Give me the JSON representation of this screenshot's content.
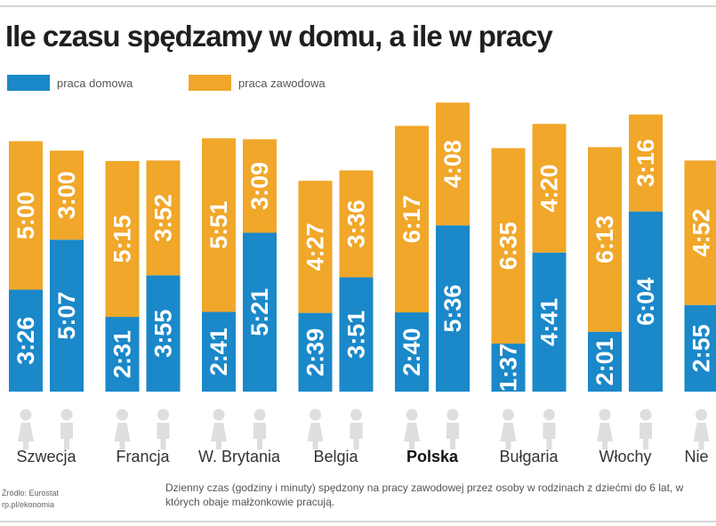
{
  "colors": {
    "home": "#1a88c9",
    "work": "#f0a72a",
    "person": "#dedede"
  },
  "chart_data": {
    "type": "bar",
    "stacked": true,
    "title": "Ile czasu spędzamy w domu, a ile w pracy",
    "legend": [
      "praca domowa",
      "praca zawodowa"
    ],
    "legend_position": "top-left",
    "grid": false,
    "unit": "h:mm",
    "groups": [
      {
        "country": "Szwecja",
        "bold": false,
        "bars": [
          {
            "gender": "female",
            "home": "3:26",
            "work": "5:00"
          },
          {
            "gender": "male",
            "home": "5:07",
            "work": "3:00"
          }
        ]
      },
      {
        "country": "Francja",
        "bold": false,
        "bars": [
          {
            "gender": "female",
            "home": "2:31",
            "work": "5:15"
          },
          {
            "gender": "male",
            "home": "3:55",
            "work": "3:52"
          }
        ]
      },
      {
        "country": "W. Brytania",
        "bold": false,
        "bars": [
          {
            "gender": "female",
            "home": "2:41",
            "work": "5:51"
          },
          {
            "gender": "male",
            "home": "5:21",
            "work": "3:09"
          }
        ]
      },
      {
        "country": "Belgia",
        "bold": false,
        "bars": [
          {
            "gender": "female",
            "home": "2:39",
            "work": "4:27"
          },
          {
            "gender": "male",
            "home": "3:51",
            "work": "3:36"
          }
        ]
      },
      {
        "country": "Polska",
        "bold": true,
        "bars": [
          {
            "gender": "female",
            "home": "2:40",
            "work": "6:17"
          },
          {
            "gender": "male",
            "home": "5:36",
            "work": "4:08"
          }
        ]
      },
      {
        "country": "Bułgaria",
        "bold": false,
        "bars": [
          {
            "gender": "female",
            "home": "1:37",
            "work": "6:35"
          },
          {
            "gender": "male",
            "home": "4:41",
            "work": "4:20"
          }
        ]
      },
      {
        "country": "Włochy",
        "bold": false,
        "bars": [
          {
            "gender": "female",
            "home": "2:01",
            "work": "6:13"
          },
          {
            "gender": "male",
            "home": "6:04",
            "work": "3:16"
          }
        ]
      },
      {
        "country": "Nie",
        "bold": false,
        "bars": [
          {
            "gender": "female",
            "home": "2:55",
            "work": "4:52"
          }
        ]
      }
    ]
  },
  "footer": {
    "source": "Źródło: Eurostat\nrp.pl/ekonomia",
    "note": "Dzienny czas (godziny i minuty) spędzony na pracy zawodowej przez osoby w rodzinach z dziećmi do 6 lat, w których obaje małżonkowie pracują."
  }
}
